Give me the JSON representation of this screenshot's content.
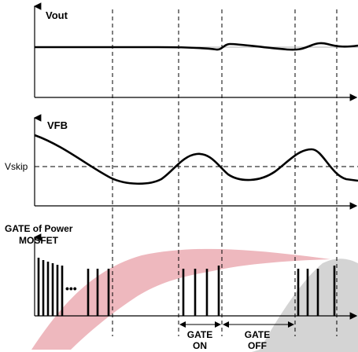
{
  "panels": {
    "vout": {
      "label": "Vout"
    },
    "vfb": {
      "label": "VFB",
      "threshold_label": "Vskip"
    },
    "gate": {
      "label_line1": "GATE of Power",
      "label_line2": "MOSFET",
      "ellipsis": "•••"
    }
  },
  "annotations": {
    "gate_on": {
      "line1": "GATE",
      "line2": "ON"
    },
    "gate_off": {
      "line1": "GATE",
      "line2": "OFF"
    }
  },
  "colors": {
    "watermark_red": "#e8a0a8",
    "watermark_gray": "#c9c9c9",
    "line": "#000000"
  }
}
